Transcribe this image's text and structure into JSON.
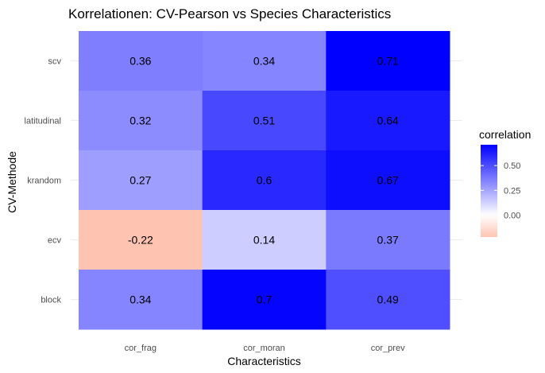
{
  "chart_data": {
    "type": "heatmap",
    "title": "Korrelationen: CV-Pearson vs Species Characteristics",
    "xlabel": "Characteristics",
    "ylabel": "CV-Methode",
    "x_categories": [
      "cor_frag",
      "cor_moran",
      "cor_prev"
    ],
    "y_categories": [
      "scv",
      "latitudinal",
      "krandom",
      "ecv",
      "block"
    ],
    "values": [
      [
        0.36,
        0.34,
        0.71
      ],
      [
        0.32,
        0.51,
        0.64
      ],
      [
        0.27,
        0.6,
        0.67
      ],
      [
        -0.22,
        0.14,
        0.37
      ],
      [
        0.34,
        0.7,
        0.49
      ]
    ],
    "value_labels": [
      [
        "0.36",
        "0.34",
        "0.71"
      ],
      [
        "0.32",
        "0.51",
        "0.64"
      ],
      [
        "0.27",
        "0.6",
        "0.67"
      ],
      [
        "-0.22",
        "0.14",
        "0.37"
      ],
      [
        "0.34",
        "0.7",
        "0.49"
      ]
    ],
    "legend": {
      "title": "correlation",
      "ticks": [
        0.5,
        0.25,
        0.0
      ],
      "tick_labels": [
        "0.50",
        "0.25",
        "0.00"
      ],
      "range": [
        -0.22,
        0.71
      ],
      "placement": "right"
    },
    "colors": {
      "low": "#FFC4B1",
      "mid": "#FFFFFF",
      "high": "#0000FF"
    },
    "grid": true
  }
}
